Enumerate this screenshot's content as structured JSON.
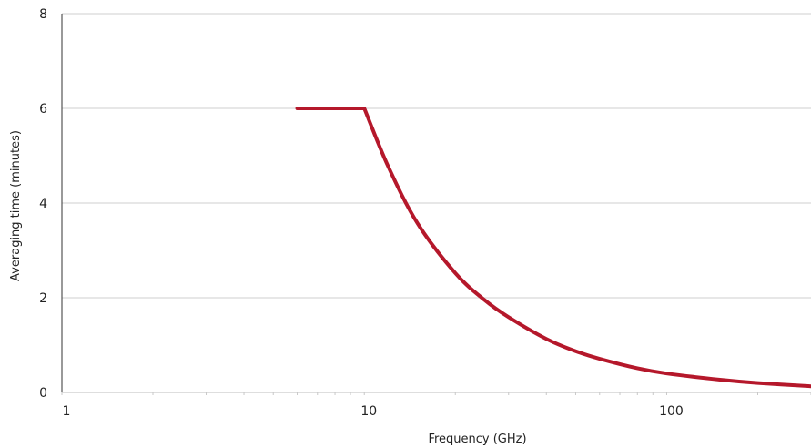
{
  "chart_data": {
    "type": "line",
    "xlabel": "Frequency (GHz)",
    "ylabel": "Averaging time (minutes)",
    "xscale": "log",
    "xlim": [
      1,
      300
    ],
    "ylim": [
      0,
      8
    ],
    "xticks": [
      1,
      10,
      100
    ],
    "xtick_labels": [
      "1",
      "10",
      "100"
    ],
    "yticks": [
      0,
      2,
      4,
      6,
      8
    ],
    "ytick_labels": [
      "0",
      "2",
      "4",
      "6",
      "8"
    ],
    "grid": "horizontal",
    "legend": "none",
    "series": [
      {
        "color": "#b5182b",
        "x": [
          6,
          10,
          12,
          15,
          20,
          25,
          30,
          40,
          50,
          60,
          80,
          100,
          150,
          200,
          300
        ],
        "y": [
          6,
          6,
          4.77,
          3.57,
          2.52,
          1.95,
          1.59,
          1.13,
          0.87,
          0.71,
          0.51,
          0.4,
          0.27,
          0.2,
          0.13
        ]
      }
    ]
  }
}
